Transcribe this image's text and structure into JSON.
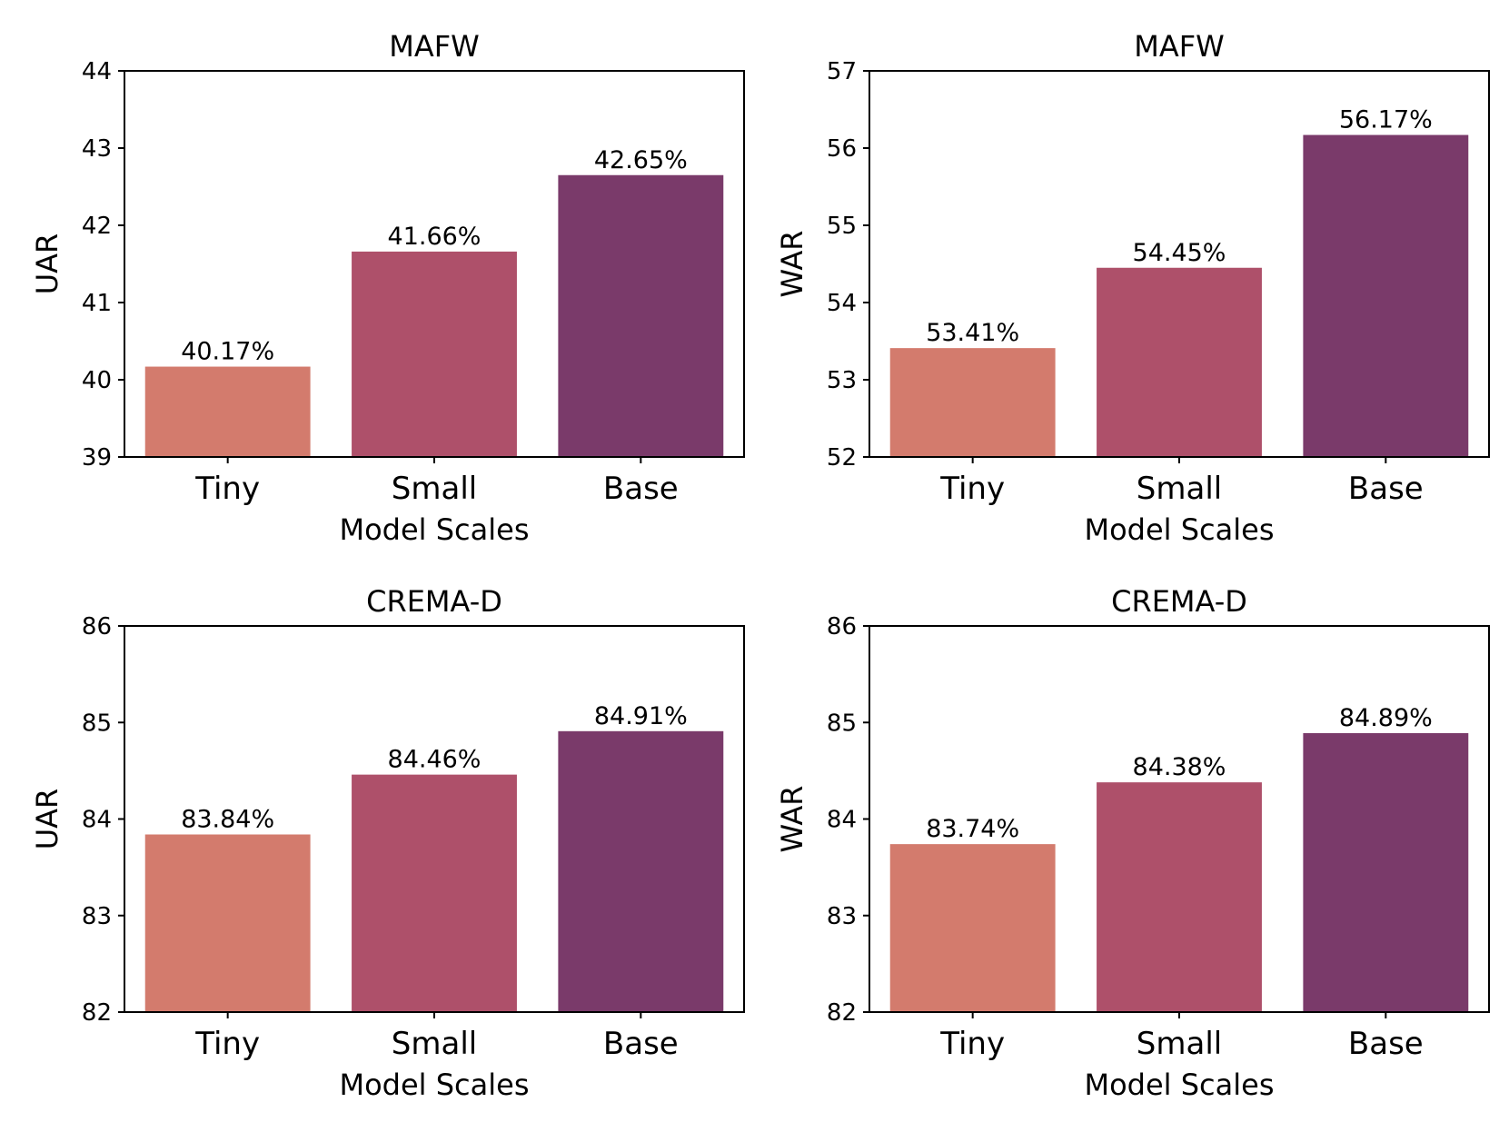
{
  "chart_data": [
    {
      "type": "bar",
      "title": "MAFW",
      "xlabel": "Model Scales",
      "ylabel": "UAR",
      "categories": [
        "Tiny",
        "Small",
        "Base"
      ],
      "values": [
        40.17,
        41.66,
        42.65
      ],
      "value_labels": [
        "40.17%",
        "41.66%",
        "42.65%"
      ],
      "ylim": [
        39,
        44
      ],
      "yticks": [
        39,
        40,
        41,
        42,
        43,
        44
      ],
      "colors": [
        "#d37b6d",
        "#ae506a",
        "#7a3a6a"
      ]
    },
    {
      "type": "bar",
      "title": "MAFW",
      "xlabel": "Model Scales",
      "ylabel": "WAR",
      "categories": [
        "Tiny",
        "Small",
        "Base"
      ],
      "values": [
        53.41,
        54.45,
        56.17
      ],
      "value_labels": [
        "53.41%",
        "54.45%",
        "56.17%"
      ],
      "ylim": [
        52,
        57
      ],
      "yticks": [
        52,
        53,
        54,
        55,
        56,
        57
      ],
      "colors": [
        "#d37b6d",
        "#ae506a",
        "#7a3a6a"
      ]
    },
    {
      "type": "bar",
      "title": "CREMA-D",
      "xlabel": "Model Scales",
      "ylabel": "UAR",
      "categories": [
        "Tiny",
        "Small",
        "Base"
      ],
      "values": [
        83.84,
        84.46,
        84.91
      ],
      "value_labels": [
        "83.84%",
        "84.46%",
        "84.91%"
      ],
      "ylim": [
        82,
        86
      ],
      "yticks": [
        82,
        83,
        84,
        85,
        86
      ],
      "colors": [
        "#d37b6d",
        "#ae506a",
        "#7a3a6a"
      ]
    },
    {
      "type": "bar",
      "title": "CREMA-D",
      "xlabel": "Model Scales",
      "ylabel": "WAR",
      "categories": [
        "Tiny",
        "Small",
        "Base"
      ],
      "values": [
        83.74,
        84.38,
        84.89
      ],
      "value_labels": [
        "83.74%",
        "84.38%",
        "84.89%"
      ],
      "ylim": [
        82,
        86
      ],
      "yticks": [
        82,
        83,
        84,
        85,
        86
      ],
      "colors": [
        "#d37b6d",
        "#ae506a",
        "#7a3a6a"
      ]
    }
  ]
}
